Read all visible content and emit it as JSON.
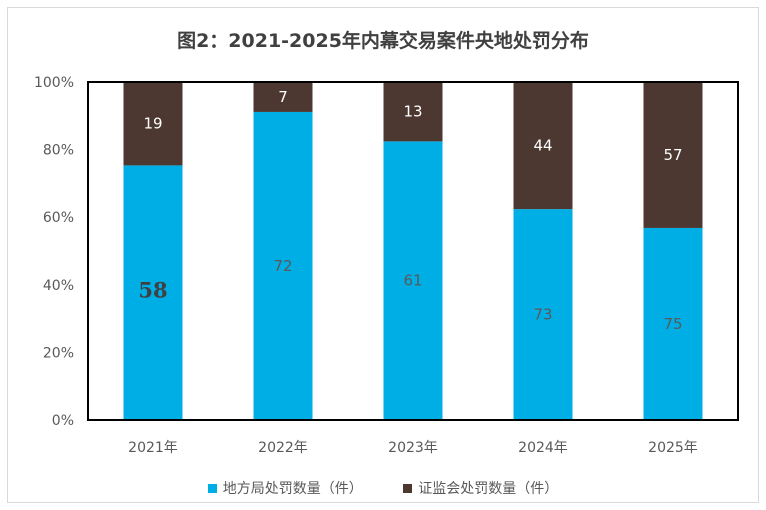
{
  "title": "图2：2021-2025年内幕交易案件央地处罚分布",
  "colors": {
    "local": "#00aee6",
    "csrc": "#4d3731",
    "axis": "#000000"
  },
  "chart_data": {
    "type": "bar",
    "stacked": "percent",
    "title": "图2：2021-2025年内幕交易案件央地处罚分布",
    "categories": [
      "2021年",
      "2022年",
      "2023年",
      "2024年",
      "2025年"
    ],
    "series": [
      {
        "name": "地方局处罚数量（件）",
        "values": [
          58,
          72,
          61,
          73,
          75
        ]
      },
      {
        "name": "证监会处罚数量（件）",
        "values": [
          19,
          7,
          13,
          44,
          57
        ]
      }
    ],
    "yticks": [
      "0%",
      "20%",
      "40%",
      "60%",
      "80%",
      "100%"
    ],
    "ylim": [
      0,
      100
    ],
    "legend": "bottom",
    "grid": false
  }
}
